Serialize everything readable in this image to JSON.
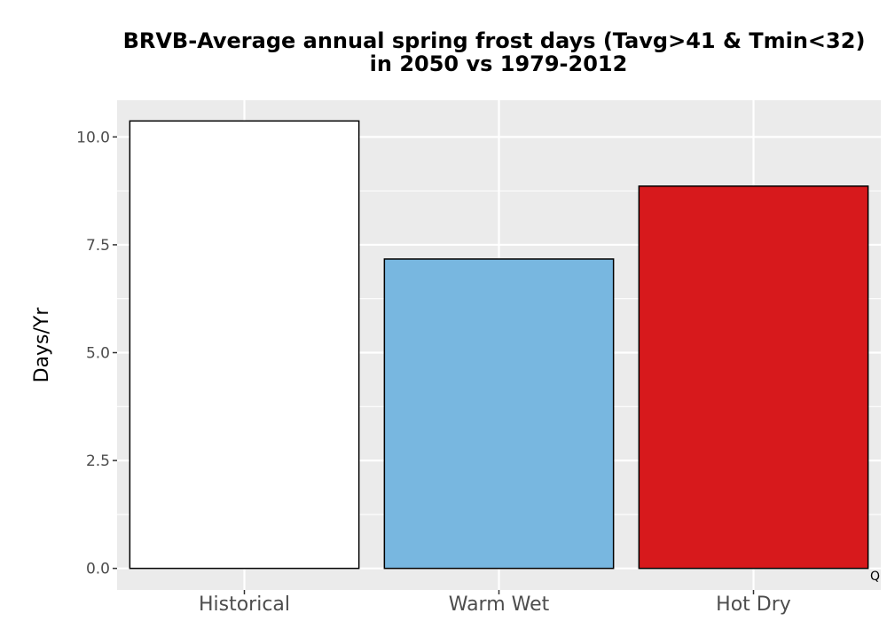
{
  "chart_data": {
    "type": "bar",
    "title_line1": "BRVB-Average annual spring frost days (Tavg>41 & Tmin<32)",
    "title_line2": "in 2050 vs 1979-2012",
    "xlabel": "",
    "ylabel": "Days/Yr",
    "categories": [
      "Historical",
      "Warm Wet",
      "Hot Dry"
    ],
    "values": [
      10.37,
      7.17,
      8.86
    ],
    "colors": [
      "#ffffff",
      "#78b7e0",
      "#d7191c"
    ],
    "ylim": [
      -0.5,
      10.85
    ],
    "yticks": [
      0.0,
      2.5,
      5.0,
      7.5,
      10.0
    ],
    "ytick_labels": [
      "0.0",
      "2.5",
      "5.0",
      "7.5",
      "10.0"
    ],
    "grid": true,
    "panel_background": "#ebebeb",
    "bar_outline": "#000000",
    "annotation": "Q"
  }
}
